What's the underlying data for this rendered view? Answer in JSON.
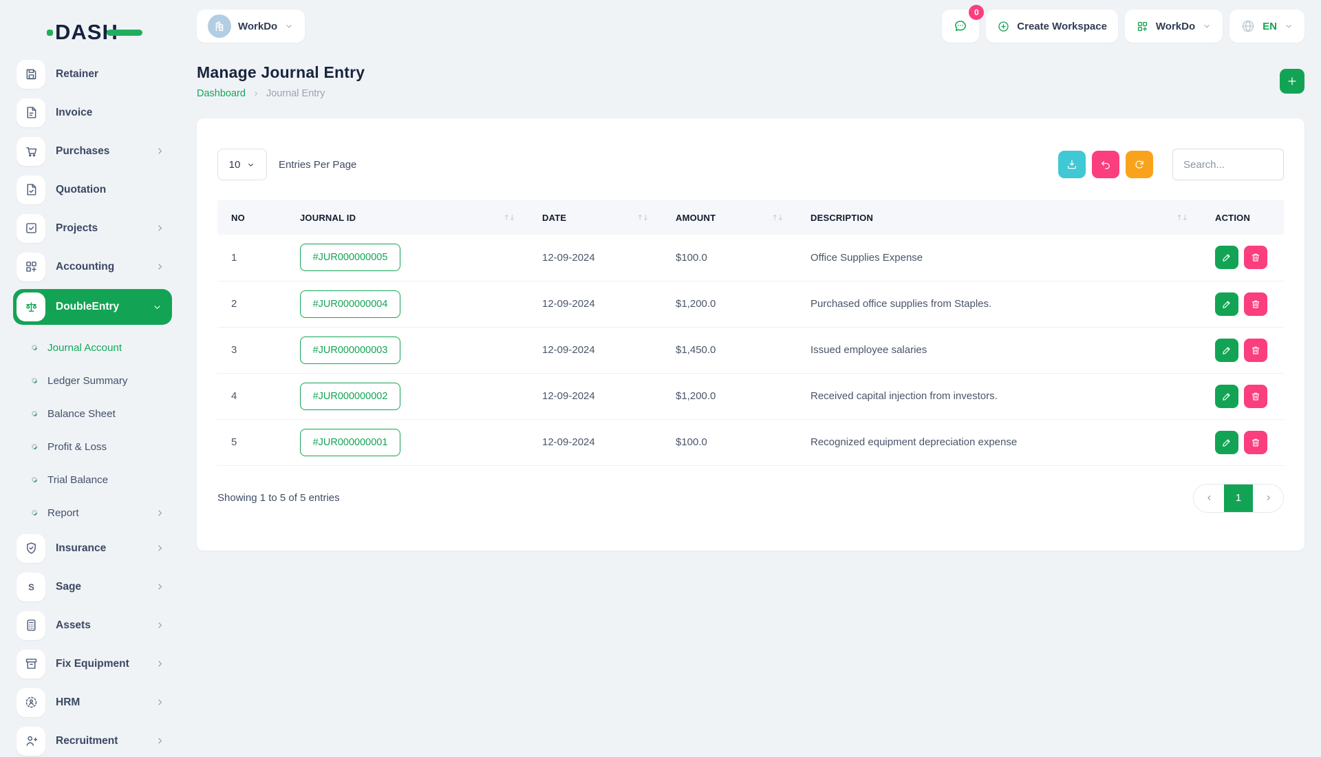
{
  "brand": {
    "name": "DASH"
  },
  "topbar": {
    "workspace": {
      "label": "WorkDo"
    },
    "messages_badge": "0",
    "create_workspace_label": "Create Workspace",
    "workspace_menu_label": "WorkDo",
    "language": "EN"
  },
  "sidebar": {
    "items": [
      {
        "label": "Retainer",
        "icon": "retainer-icon"
      },
      {
        "label": "Invoice",
        "icon": "invoice-icon"
      },
      {
        "label": "Purchases",
        "icon": "purchases-icon",
        "expandable": true
      },
      {
        "label": "Quotation",
        "icon": "quotation-icon"
      },
      {
        "label": "Projects",
        "icon": "projects-icon",
        "expandable": true
      },
      {
        "label": "Accounting",
        "icon": "accounting-icon",
        "expandable": true
      },
      {
        "label": "DoubleEntry",
        "icon": "double-entry-icon",
        "expandable": true,
        "expanded": true,
        "active": true,
        "subitems": [
          {
            "label": "Journal Account",
            "active": true
          },
          {
            "label": "Ledger Summary"
          },
          {
            "label": "Balance Sheet"
          },
          {
            "label": "Profit & Loss"
          },
          {
            "label": "Trial Balance"
          },
          {
            "label": "Report",
            "expandable": true
          }
        ]
      },
      {
        "label": "Insurance",
        "icon": "insurance-icon",
        "expandable": true
      },
      {
        "label": "Sage",
        "icon": "sage-icon",
        "expandable": true
      },
      {
        "label": "Assets",
        "icon": "assets-icon",
        "expandable": true
      },
      {
        "label": "Fix Equipment",
        "icon": "fix-equipment-icon",
        "expandable": true
      },
      {
        "label": "HRM",
        "icon": "hrm-icon",
        "expandable": true
      },
      {
        "label": "Recruitment",
        "icon": "recruitment-icon",
        "expandable": true
      }
    ]
  },
  "page": {
    "title": "Manage Journal Entry",
    "breadcrumb": {
      "root": "Dashboard",
      "current": "Journal Entry"
    }
  },
  "toolbar": {
    "entries_per_page": "10",
    "entries_label": "Entries Per Page",
    "search_placeholder": "Search..."
  },
  "table": {
    "columns": [
      {
        "label": "NO"
      },
      {
        "label": "JOURNAL ID",
        "sortable": true
      },
      {
        "label": "DATE",
        "sortable": true
      },
      {
        "label": "AMOUNT",
        "sortable": true
      },
      {
        "label": "DESCRIPTION",
        "sortable": true
      },
      {
        "label": "ACTION"
      }
    ],
    "rows": [
      {
        "no": "1",
        "journal_id": "#JUR000000005",
        "date": "12-09-2024",
        "amount": "$100.0",
        "description": "Office Supplies Expense"
      },
      {
        "no": "2",
        "journal_id": "#JUR000000004",
        "date": "12-09-2024",
        "amount": "$1,200.0",
        "description": "Purchased office supplies from Staples."
      },
      {
        "no": "3",
        "journal_id": "#JUR000000003",
        "date": "12-09-2024",
        "amount": "$1,450.0",
        "description": "Issued employee salaries"
      },
      {
        "no": "4",
        "journal_id": "#JUR000000002",
        "date": "12-09-2024",
        "amount": "$1,200.0",
        "description": "Received capital injection from investors."
      },
      {
        "no": "5",
        "journal_id": "#JUR000000001",
        "date": "12-09-2024",
        "amount": "$100.0",
        "description": "Recognized equipment depreciation expense"
      }
    ],
    "summary": "Showing 1 to 5 of 5 entries",
    "current_page": "1"
  },
  "colors": {
    "primary_green": "#12a454",
    "pink": "#fb3e7d",
    "teal": "#41c8d5",
    "orange": "#f9a31d",
    "navy": "#16233e"
  }
}
